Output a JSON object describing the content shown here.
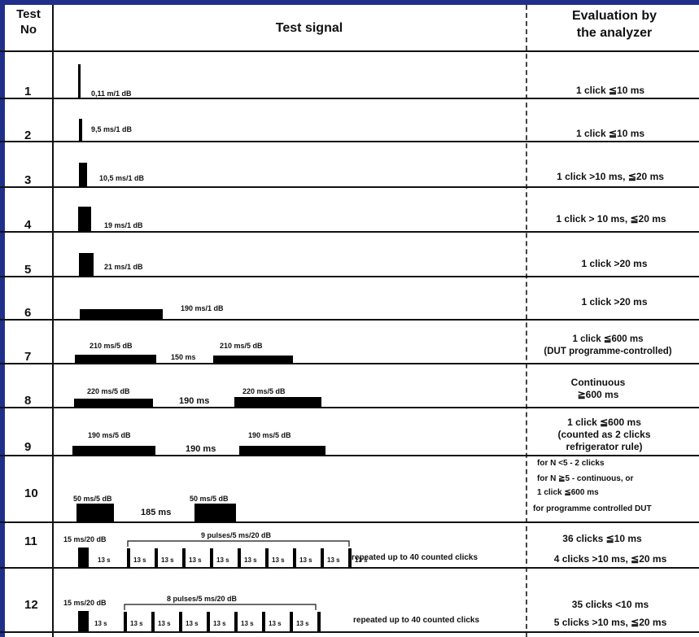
{
  "header": {
    "test_no": "Test No",
    "test_signal": "Test signal",
    "evaluation": "Evaluation by the analyzer"
  },
  "rows": [
    {
      "no": "1",
      "signals": [
        "0,11 m/1 dB"
      ],
      "evaluation": "1 click ≦10 ms"
    },
    {
      "no": "2",
      "signals": [
        "9,5 ms/1 dB"
      ],
      "evaluation": "1 click ≦10 ms"
    },
    {
      "no": "3",
      "signals": [
        "10,5 ms/1 dB"
      ],
      "evaluation": "1 click >10 ms, ≦20 ms"
    },
    {
      "no": "4",
      "signals": [
        "19 ms/1 dB"
      ],
      "evaluation": "1 click > 10 ms, ≦20 ms"
    },
    {
      "no": "5",
      "signals": [
        "21 ms/1 dB"
      ],
      "evaluation": "1 click >20 ms"
    },
    {
      "no": "6",
      "signals": [
        "190 ms/1 dB"
      ],
      "evaluation": "1 click >20 ms"
    },
    {
      "no": "7",
      "signals": [
        "210 ms/5 dB",
        "210 ms/5 dB"
      ],
      "gap": "150 ms",
      "evaluation": "1 click ≦600 ms (DUT programme-controlled)"
    },
    {
      "no": "8",
      "signals": [
        "220 ms/5 dB",
        "220 ms/5 dB"
      ],
      "gap": "190 ms",
      "evaluation": "Continuous ≧600 ms"
    },
    {
      "no": "9",
      "signals": [
        "190 ms/5 dB",
        "190 ms/5 dB"
      ],
      "gap": "190 ms",
      "evaluation": "1 click ≦600 ms (counted as 2 clicks refrigerator rule)"
    },
    {
      "no": "10",
      "signals": [
        "50 ms/5 dB",
        "50 ms/5 dB"
      ],
      "gap": "185 ms",
      "evaluation": [
        "for N <5 - 2 clicks",
        "for N ≧5 - continuous, or",
        "1 click ≦600 ms",
        "for programme controlled DUT"
      ]
    },
    {
      "no": "11",
      "signals": [
        "15 ms/20 dB"
      ],
      "pulses": "9 pulses/5 ms/20 dB",
      "interval": "13 s",
      "repeat": "repeated up to 40 counted clicks",
      "evaluation": [
        "36 clicks ≦10 ms",
        "4 clicks >10 ms, ≦20 ms"
      ]
    },
    {
      "no": "12",
      "signals": [
        "15 ms/20 dB"
      ],
      "pulses": "8 pulses/5 ms/20 dB",
      "interval": "13 s",
      "repeat": "repeated up to 40 counted clicks",
      "evaluation": [
        "35 clicks <10 ms",
        "5 clicks >10 ms, ≦20 ms"
      ]
    }
  ]
}
